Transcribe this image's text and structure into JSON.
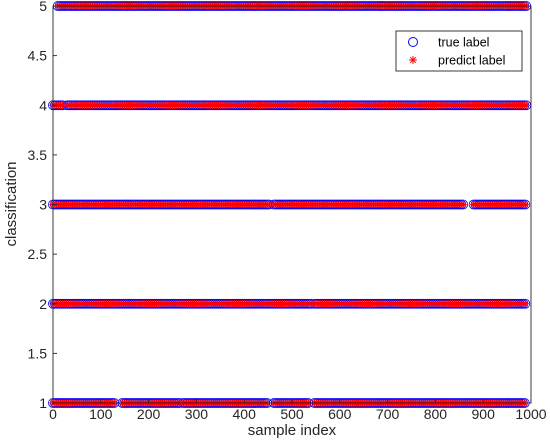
{
  "chart_data": {
    "type": "scatter",
    "xlabel": "sample index",
    "ylabel": "classification",
    "xlim": [
      0,
      1000
    ],
    "ylim": [
      1,
      5
    ],
    "x_ticks": [
      "0",
      "100",
      "200",
      "300",
      "400",
      "500",
      "600",
      "700",
      "800",
      "900",
      "1000"
    ],
    "y_ticks": [
      "1",
      "1.5",
      "2",
      "2.5",
      "3",
      "3.5",
      "4",
      "4.5",
      "5"
    ],
    "grid": false,
    "legend_position": "top-right",
    "colors": {
      "true_label": "#0000ff",
      "predict_label": "#ff0000",
      "axis": "#262626"
    },
    "series": [
      {
        "name": "true label",
        "marker": "circle",
        "levels": [
          1,
          2,
          3,
          4,
          5
        ],
        "occupied_ranges": {
          "1": [
            [
              0,
              130
            ],
            [
              145,
              268
            ],
            [
              272,
              450
            ],
            [
              462,
              535
            ],
            [
              547,
              990
            ]
          ],
          "2": [
            [
              0,
              540
            ],
            [
              548,
              990
            ]
          ],
          "3": [
            [
              0,
              455
            ],
            [
              462,
              860
            ],
            [
              880,
              990
            ]
          ],
          "4": [
            [
              0,
              20
            ],
            [
              30,
              990
            ]
          ],
          "5": [
            [
              10,
              990
            ]
          ]
        }
      },
      {
        "name": "predict label",
        "marker": "asterisk",
        "levels": [
          1,
          2,
          3,
          4,
          5
        ],
        "occupied_ranges": {
          "1": [
            [
              0,
              130
            ],
            [
              145,
              268
            ],
            [
              272,
              450
            ],
            [
              462,
              535
            ],
            [
              547,
              990
            ]
          ],
          "2": [
            [
              0,
              540
            ],
            [
              548,
              990
            ]
          ],
          "3": [
            [
              0,
              455
            ],
            [
              462,
              860
            ],
            [
              880,
              990
            ]
          ],
          "4": [
            [
              0,
              20
            ],
            [
              30,
              990
            ]
          ],
          "5": [
            [
              10,
              990
            ]
          ]
        }
      }
    ]
  }
}
